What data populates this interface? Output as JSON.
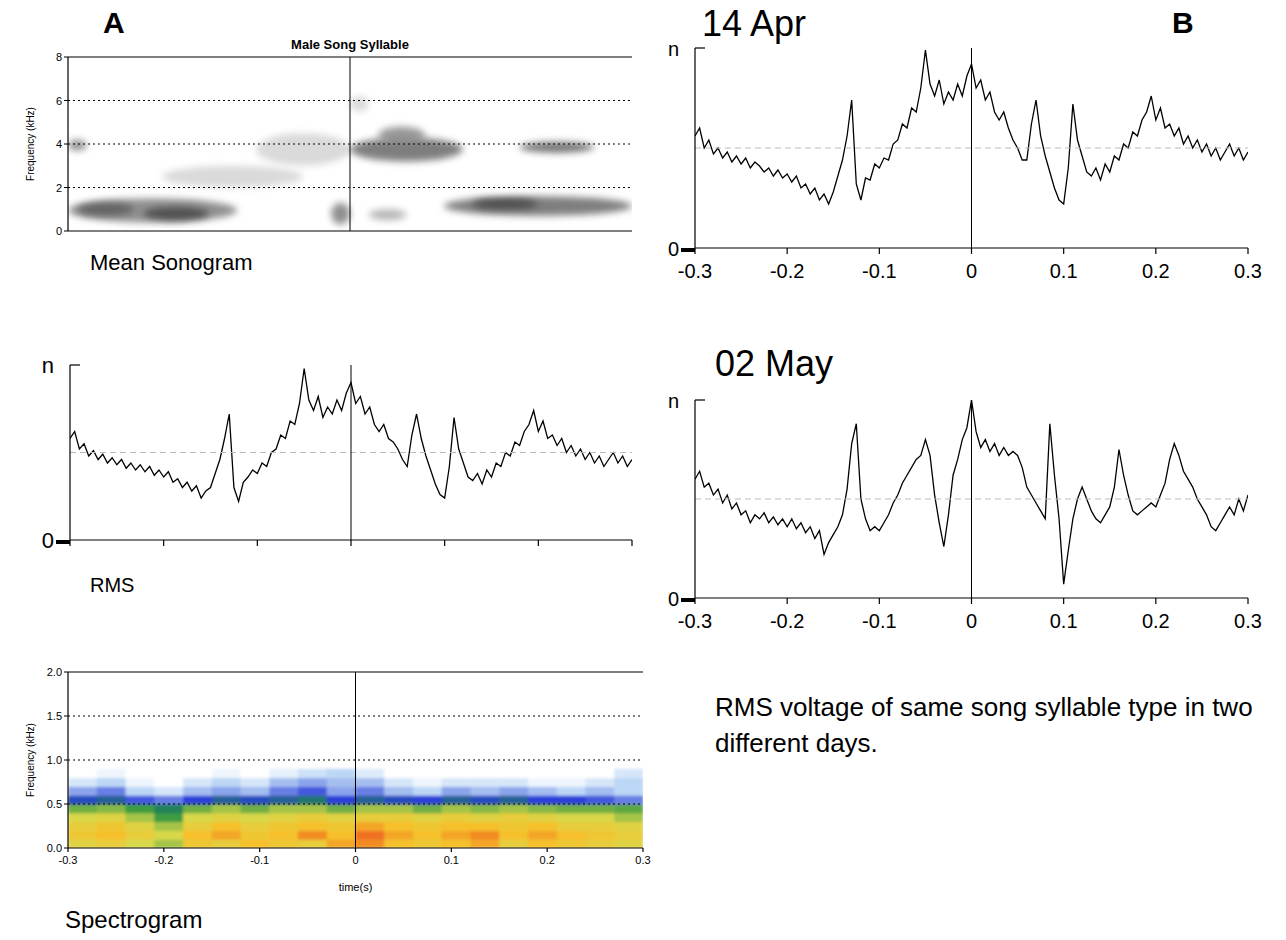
{
  "chart_data": [
    {
      "type": "sonogram",
      "title": "Male Song Syllable",
      "panel": "A",
      "caption": "Mean Sonogram",
      "y_label": "Frequency (kHz)",
      "xlim": [
        -0.3,
        0.3
      ],
      "ylim": [
        0,
        8
      ],
      "yticks": [
        0,
        2,
        4,
        6,
        8
      ],
      "grid": true,
      "tick_labels": "y",
      "reference_x": 0,
      "blobs": [
        {
          "t0": -0.3,
          "t1": -0.12,
          "f0": 0.4,
          "f1": 1.5,
          "level": 0.6
        },
        {
          "t0": -0.22,
          "t1": -0.15,
          "f0": 0.5,
          "f1": 1.1,
          "level": 0.85
        },
        {
          "t0": -0.29,
          "t1": -0.23,
          "f0": 0.7,
          "f1": 1.3,
          "level": 0.75
        },
        {
          "t0": -0.3,
          "t1": -0.28,
          "f0": 3.7,
          "f1": 4.2,
          "level": 0.6
        },
        {
          "t0": -0.2,
          "t1": -0.05,
          "f0": 2.0,
          "f1": 3.0,
          "level": 0.2
        },
        {
          "t0": -0.1,
          "t1": 0.0,
          "f0": 3.0,
          "f1": 4.5,
          "level": 0.2
        },
        {
          "t0": -0.02,
          "t1": 0.0,
          "f0": 0.3,
          "f1": 1.3,
          "level": 0.6
        },
        {
          "t0": 0.0,
          "t1": 0.12,
          "f0": 3.2,
          "f1": 4.3,
          "level": 0.7
        },
        {
          "t0": 0.03,
          "t1": 0.08,
          "f0": 4.0,
          "f1": 4.8,
          "level": 0.55
        },
        {
          "t0": 0.02,
          "t1": 0.06,
          "f0": 0.5,
          "f1": 1.0,
          "level": 0.4
        },
        {
          "t0": 0.1,
          "t1": 0.3,
          "f0": 0.7,
          "f1": 1.6,
          "level": 0.7
        },
        {
          "t0": 0.13,
          "t1": 0.2,
          "f0": 1.0,
          "f1": 1.5,
          "level": 0.85
        },
        {
          "t0": 0.18,
          "t1": 0.26,
          "f0": 3.6,
          "f1": 4.1,
          "level": 0.75
        },
        {
          "t0": 0.0,
          "t1": 0.02,
          "f0": 5.5,
          "f1": 6.2,
          "level": 0.2
        }
      ]
    },
    {
      "type": "line",
      "caption": "RMS",
      "color": "#000000",
      "xlim": [
        -0.3,
        0.3
      ],
      "ylim": [
        0,
        1
      ],
      "xticks": [
        -0.3,
        -0.2,
        -0.1,
        0,
        0.1,
        0.2,
        0.3
      ],
      "yticks": [
        0,
        {
          "value": 1,
          "label": "n"
        }
      ],
      "tick_labels": "y",
      "reference_x": 0,
      "reference_line": 0.5,
      "x": [
        -0.3,
        -0.295,
        -0.29,
        -0.285,
        -0.28,
        -0.275,
        -0.27,
        -0.265,
        -0.26,
        -0.255,
        -0.25,
        -0.245,
        -0.24,
        -0.235,
        -0.23,
        -0.225,
        -0.22,
        -0.215,
        -0.21,
        -0.205,
        -0.2,
        -0.195,
        -0.19,
        -0.185,
        -0.18,
        -0.175,
        -0.17,
        -0.165,
        -0.16,
        -0.155,
        -0.15,
        -0.145,
        -0.14,
        -0.135,
        -0.13,
        -0.125,
        -0.12,
        -0.115,
        -0.11,
        -0.105,
        -0.1,
        -0.095,
        -0.09,
        -0.085,
        -0.08,
        -0.075,
        -0.07,
        -0.065,
        -0.06,
        -0.055,
        -0.05,
        -0.045,
        -0.04,
        -0.035,
        -0.03,
        -0.025,
        -0.02,
        -0.015,
        -0.01,
        -0.005,
        0,
        0.005,
        0.01,
        0.015,
        0.02,
        0.025,
        0.03,
        0.035,
        0.04,
        0.045,
        0.05,
        0.055,
        0.06,
        0.065,
        0.07,
        0.075,
        0.08,
        0.085,
        0.09,
        0.095,
        0.1,
        0.105,
        0.11,
        0.115,
        0.12,
        0.125,
        0.13,
        0.135,
        0.14,
        0.145,
        0.15,
        0.155,
        0.16,
        0.165,
        0.17,
        0.175,
        0.18,
        0.185,
        0.19,
        0.195,
        0.2,
        0.205,
        0.21,
        0.215,
        0.22,
        0.225,
        0.23,
        0.235,
        0.24,
        0.245,
        0.25,
        0.255,
        0.26,
        0.265,
        0.27,
        0.275,
        0.28,
        0.285,
        0.29,
        0.295,
        0.3
      ],
      "values": [
        0.58,
        0.62,
        0.52,
        0.55,
        0.48,
        0.51,
        0.46,
        0.49,
        0.44,
        0.47,
        0.43,
        0.46,
        0.41,
        0.44,
        0.4,
        0.43,
        0.39,
        0.42,
        0.37,
        0.4,
        0.36,
        0.39,
        0.33,
        0.35,
        0.3,
        0.33,
        0.28,
        0.31,
        0.24,
        0.28,
        0.3,
        0.38,
        0.46,
        0.58,
        0.72,
        0.3,
        0.22,
        0.33,
        0.36,
        0.4,
        0.38,
        0.44,
        0.42,
        0.5,
        0.52,
        0.6,
        0.58,
        0.68,
        0.66,
        0.78,
        0.98,
        0.8,
        0.74,
        0.82,
        0.7,
        0.76,
        0.72,
        0.8,
        0.74,
        0.84,
        0.9,
        0.78,
        0.82,
        0.72,
        0.76,
        0.66,
        0.62,
        0.66,
        0.58,
        0.56,
        0.52,
        0.46,
        0.42,
        0.6,
        0.72,
        0.58,
        0.48,
        0.4,
        0.32,
        0.26,
        0.24,
        0.42,
        0.7,
        0.52,
        0.44,
        0.36,
        0.34,
        0.38,
        0.32,
        0.4,
        0.36,
        0.44,
        0.42,
        0.5,
        0.48,
        0.56,
        0.54,
        0.62,
        0.66,
        0.74,
        0.62,
        0.68,
        0.58,
        0.6,
        0.54,
        0.58,
        0.5,
        0.54,
        0.48,
        0.52,
        0.46,
        0.5,
        0.44,
        0.48,
        0.42,
        0.46,
        0.5,
        0.44,
        0.48,
        0.42,
        0.46
      ]
    },
    {
      "type": "heatmap",
      "caption": "Spectrogram",
      "x_label": "time(s)",
      "y_label": "Frequency (kHz)",
      "xlim": [
        -0.3,
        0.3
      ],
      "ylim": [
        0,
        2
      ],
      "xticks": [
        -0.3,
        -0.2,
        -0.1,
        0,
        0.1,
        0.2,
        0.3
      ],
      "yticks": [
        {
          "value": 0,
          "label": "0.0"
        },
        {
          "value": 0.5,
          "label": "0.5"
        },
        {
          "value": 1,
          "label": "1.0"
        },
        {
          "value": 1.5,
          "label": "1.5"
        },
        {
          "value": 2,
          "label": "2.0"
        }
      ],
      "grid": true,
      "reference_x": 0,
      "zlim": [
        0,
        1
      ],
      "cell_time_edges": [
        -0.3,
        -0.27,
        -0.24,
        -0.21,
        -0.18,
        -0.15,
        -0.12,
        -0.09,
        -0.06,
        -0.03,
        0,
        0.03,
        0.06,
        0.09,
        0.12,
        0.15,
        0.18,
        0.21,
        0.24,
        0.27,
        0.3
      ],
      "cell_freq_edges": [
        0,
        0.1,
        0.2,
        0.3,
        0.4,
        0.5,
        0.6,
        0.7,
        0.8,
        0.9
      ],
      "cells": [
        [
          0.55,
          0.6,
          0.5,
          0.45,
          0.65,
          0.6,
          0.7,
          0.65,
          0.6,
          0.75,
          0.8,
          0.7,
          0.65,
          0.7,
          0.75,
          0.6,
          0.7,
          0.65,
          0.6,
          0.55
        ],
        [
          0.65,
          0.7,
          0.6,
          0.5,
          0.7,
          0.75,
          0.65,
          0.7,
          0.8,
          0.7,
          0.85,
          0.75,
          0.7,
          0.75,
          0.8,
          0.7,
          0.75,
          0.7,
          0.65,
          0.6
        ],
        [
          0.6,
          0.65,
          0.55,
          0.45,
          0.6,
          0.7,
          0.6,
          0.65,
          0.7,
          0.65,
          0.75,
          0.7,
          0.65,
          0.7,
          0.7,
          0.65,
          0.7,
          0.6,
          0.6,
          0.55
        ],
        [
          0.5,
          0.55,
          0.45,
          0.35,
          0.5,
          0.55,
          0.5,
          0.55,
          0.6,
          0.55,
          0.6,
          0.6,
          0.55,
          0.6,
          0.55,
          0.6,
          0.55,
          0.5,
          0.5,
          0.45
        ],
        [
          0.4,
          0.42,
          0.35,
          0.3,
          0.4,
          0.45,
          0.4,
          0.45,
          0.45,
          0.4,
          0.45,
          0.45,
          0.4,
          0.45,
          0.42,
          0.45,
          0.42,
          0.4,
          0.4,
          0.38
        ],
        [
          0.22,
          0.25,
          0.18,
          0.15,
          0.2,
          0.25,
          0.22,
          0.25,
          0.28,
          0.2,
          0.25,
          0.22,
          0.2,
          0.25,
          0.22,
          0.25,
          0.2,
          0.2,
          0.18,
          0.15
        ],
        [
          0.12,
          0.15,
          0.08,
          0.05,
          0.1,
          0.12,
          0.1,
          0.15,
          0.18,
          0.12,
          0.15,
          0.1,
          0.08,
          0.12,
          0.1,
          0.12,
          0.1,
          0.08,
          0.1,
          0.08
        ],
        [
          0.05,
          0.08,
          0.02,
          0,
          0.05,
          0.08,
          0.05,
          0.1,
          0.12,
          0.1,
          0.1,
          0.05,
          0.02,
          0.05,
          0.05,
          0.05,
          0.02,
          0.02,
          0.05,
          0.08
        ],
        [
          0,
          0.02,
          0,
          0,
          0,
          0.02,
          0,
          0.03,
          0.06,
          0.08,
          0.04,
          0,
          0,
          0,
          0,
          0,
          0,
          0,
          0,
          0.05
        ]
      ]
    },
    {
      "type": "line",
      "title": "14 Apr",
      "panel": "B",
      "color": "#000000",
      "xlim": [
        -0.3,
        0.3
      ],
      "ylim": [
        0,
        1
      ],
      "xticks": [
        -0.3,
        -0.2,
        -0.1,
        0,
        0.1,
        0.2,
        0.3
      ],
      "yticks": [
        0,
        {
          "value": 1,
          "label": "n"
        }
      ],
      "reference_x": 0,
      "reference_line": 0.5,
      "x": [
        -0.3,
        -0.295,
        -0.29,
        -0.285,
        -0.28,
        -0.275,
        -0.27,
        -0.265,
        -0.26,
        -0.255,
        -0.25,
        -0.245,
        -0.24,
        -0.235,
        -0.23,
        -0.225,
        -0.22,
        -0.215,
        -0.21,
        -0.205,
        -0.2,
        -0.195,
        -0.19,
        -0.185,
        -0.18,
        -0.175,
        -0.17,
        -0.165,
        -0.16,
        -0.155,
        -0.15,
        -0.145,
        -0.14,
        -0.135,
        -0.13,
        -0.125,
        -0.12,
        -0.115,
        -0.11,
        -0.105,
        -0.1,
        -0.095,
        -0.09,
        -0.085,
        -0.08,
        -0.075,
        -0.07,
        -0.065,
        -0.06,
        -0.055,
        -0.05,
        -0.045,
        -0.04,
        -0.035,
        -0.03,
        -0.025,
        -0.02,
        -0.015,
        -0.01,
        -0.005,
        0,
        0.005,
        0.01,
        0.015,
        0.02,
        0.025,
        0.03,
        0.035,
        0.04,
        0.045,
        0.05,
        0.055,
        0.06,
        0.065,
        0.07,
        0.075,
        0.08,
        0.085,
        0.09,
        0.095,
        0.1,
        0.105,
        0.11,
        0.115,
        0.12,
        0.125,
        0.13,
        0.135,
        0.14,
        0.145,
        0.15,
        0.155,
        0.16,
        0.165,
        0.17,
        0.175,
        0.18,
        0.185,
        0.19,
        0.195,
        0.2,
        0.205,
        0.21,
        0.215,
        0.22,
        0.225,
        0.23,
        0.235,
        0.24,
        0.245,
        0.25,
        0.255,
        0.26,
        0.265,
        0.27,
        0.275,
        0.28,
        0.285,
        0.29,
        0.295,
        0.3
      ],
      "values": [
        0.56,
        0.6,
        0.5,
        0.54,
        0.47,
        0.5,
        0.45,
        0.48,
        0.43,
        0.46,
        0.42,
        0.45,
        0.4,
        0.43,
        0.41,
        0.38,
        0.4,
        0.36,
        0.39,
        0.35,
        0.37,
        0.33,
        0.36,
        0.3,
        0.32,
        0.27,
        0.3,
        0.24,
        0.27,
        0.22,
        0.28,
        0.36,
        0.44,
        0.56,
        0.74,
        0.32,
        0.24,
        0.35,
        0.34,
        0.42,
        0.4,
        0.45,
        0.44,
        0.52,
        0.54,
        0.62,
        0.6,
        0.7,
        0.68,
        0.8,
        0.99,
        0.82,
        0.76,
        0.84,
        0.72,
        0.78,
        0.74,
        0.82,
        0.76,
        0.86,
        0.92,
        0.8,
        0.84,
        0.74,
        0.78,
        0.68,
        0.64,
        0.68,
        0.6,
        0.54,
        0.5,
        0.44,
        0.44,
        0.62,
        0.74,
        0.56,
        0.46,
        0.38,
        0.3,
        0.24,
        0.22,
        0.4,
        0.72,
        0.54,
        0.46,
        0.38,
        0.36,
        0.4,
        0.34,
        0.42,
        0.38,
        0.46,
        0.44,
        0.52,
        0.5,
        0.58,
        0.56,
        0.64,
        0.68,
        0.76,
        0.64,
        0.7,
        0.6,
        0.62,
        0.56,
        0.6,
        0.52,
        0.56,
        0.5,
        0.54,
        0.48,
        0.52,
        0.46,
        0.5,
        0.44,
        0.48,
        0.52,
        0.46,
        0.5,
        0.44,
        0.48
      ]
    },
    {
      "type": "line",
      "title": "02 May",
      "note": "RMS voltage of same song syllable type in two different days.",
      "color": "#000000",
      "xlim": [
        -0.3,
        0.3
      ],
      "ylim": [
        0,
        1
      ],
      "xticks": [
        -0.3,
        -0.2,
        -0.1,
        0,
        0.1,
        0.2,
        0.3
      ],
      "yticks": [
        0,
        {
          "value": 1,
          "label": "n"
        }
      ],
      "reference_x": 0,
      "reference_line": 0.5,
      "x": [
        -0.3,
        -0.295,
        -0.29,
        -0.285,
        -0.28,
        -0.275,
        -0.27,
        -0.265,
        -0.26,
        -0.255,
        -0.25,
        -0.245,
        -0.24,
        -0.235,
        -0.23,
        -0.225,
        -0.22,
        -0.215,
        -0.21,
        -0.205,
        -0.2,
        -0.195,
        -0.19,
        -0.185,
        -0.18,
        -0.175,
        -0.17,
        -0.165,
        -0.16,
        -0.155,
        -0.15,
        -0.145,
        -0.14,
        -0.135,
        -0.13,
        -0.125,
        -0.12,
        -0.115,
        -0.11,
        -0.105,
        -0.1,
        -0.095,
        -0.09,
        -0.085,
        -0.08,
        -0.075,
        -0.07,
        -0.065,
        -0.06,
        -0.055,
        -0.05,
        -0.045,
        -0.04,
        -0.035,
        -0.03,
        -0.025,
        -0.02,
        -0.015,
        -0.01,
        -0.005,
        0,
        0.005,
        0.01,
        0.015,
        0.02,
        0.025,
        0.03,
        0.035,
        0.04,
        0.045,
        0.05,
        0.055,
        0.06,
        0.065,
        0.07,
        0.075,
        0.08,
        0.085,
        0.09,
        0.095,
        0.1,
        0.105,
        0.11,
        0.115,
        0.12,
        0.125,
        0.13,
        0.135,
        0.14,
        0.145,
        0.15,
        0.155,
        0.16,
        0.165,
        0.17,
        0.175,
        0.18,
        0.185,
        0.19,
        0.195,
        0.2,
        0.205,
        0.21,
        0.215,
        0.22,
        0.225,
        0.23,
        0.235,
        0.24,
        0.245,
        0.25,
        0.255,
        0.26,
        0.265,
        0.27,
        0.275,
        0.28,
        0.285,
        0.29,
        0.295,
        0.3
      ],
      "values": [
        0.6,
        0.64,
        0.56,
        0.58,
        0.52,
        0.55,
        0.48,
        0.52,
        0.45,
        0.48,
        0.42,
        0.44,
        0.38,
        0.42,
        0.4,
        0.43,
        0.38,
        0.41,
        0.37,
        0.4,
        0.36,
        0.4,
        0.35,
        0.38,
        0.33,
        0.36,
        0.3,
        0.34,
        0.22,
        0.28,
        0.32,
        0.36,
        0.42,
        0.55,
        0.78,
        0.88,
        0.5,
        0.4,
        0.34,
        0.36,
        0.34,
        0.38,
        0.42,
        0.48,
        0.52,
        0.58,
        0.62,
        0.66,
        0.7,
        0.72,
        0.8,
        0.72,
        0.52,
        0.38,
        0.26,
        0.42,
        0.62,
        0.7,
        0.8,
        0.86,
        1.0,
        0.84,
        0.76,
        0.8,
        0.74,
        0.78,
        0.72,
        0.76,
        0.72,
        0.74,
        0.72,
        0.66,
        0.56,
        0.52,
        0.48,
        0.44,
        0.4,
        0.88,
        0.62,
        0.4,
        0.07,
        0.24,
        0.4,
        0.5,
        0.56,
        0.5,
        0.44,
        0.4,
        0.38,
        0.42,
        0.46,
        0.56,
        0.75,
        0.62,
        0.52,
        0.44,
        0.42,
        0.44,
        0.46,
        0.48,
        0.46,
        0.52,
        0.58,
        0.7,
        0.78,
        0.72,
        0.64,
        0.6,
        0.56,
        0.5,
        0.46,
        0.42,
        0.36,
        0.34,
        0.38,
        0.42,
        0.46,
        0.42,
        0.5,
        0.44,
        0.52
      ]
    }
  ]
}
